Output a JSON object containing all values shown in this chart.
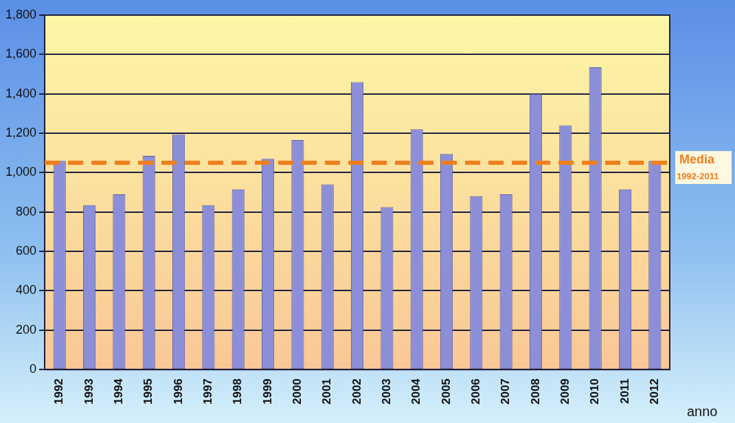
{
  "chart_data": {
    "type": "bar",
    "xlabel": "anno",
    "categories": [
      "1992",
      "1993",
      "1994",
      "1995",
      "1996",
      "1997",
      "1998",
      "1999",
      "2000",
      "2001",
      "2002",
      "2003",
      "2004",
      "2005",
      "2006",
      "2007",
      "2008",
      "2009",
      "2010",
      "2011",
      "2012"
    ],
    "values": [
      1060,
      835,
      890,
      1085,
      1195,
      835,
      915,
      1070,
      1165,
      940,
      1460,
      825,
      1220,
      1095,
      880,
      890,
      1400,
      1240,
      1535,
      915,
      1060
    ],
    "color": "#8c8fd8",
    "ylim": [
      0,
      1800
    ],
    "yticks": [
      0,
      200,
      400,
      600,
      800,
      {
        "value": 1000,
        "label": "1,000"
      },
      {
        "value": 1200,
        "label": "1,200"
      },
      {
        "value": 1400,
        "label": "1,400"
      },
      {
        "value": 1600,
        "label": "1,600"
      },
      {
        "value": 1800,
        "label": "1,800"
      }
    ],
    "grid": "y",
    "legend": false,
    "ref_lines": [
      {
        "axis": "y",
        "value": 1050,
        "label": "Media 1992-2011",
        "color": "#f07f1e",
        "line_style": "dashed"
      }
    ]
  }
}
